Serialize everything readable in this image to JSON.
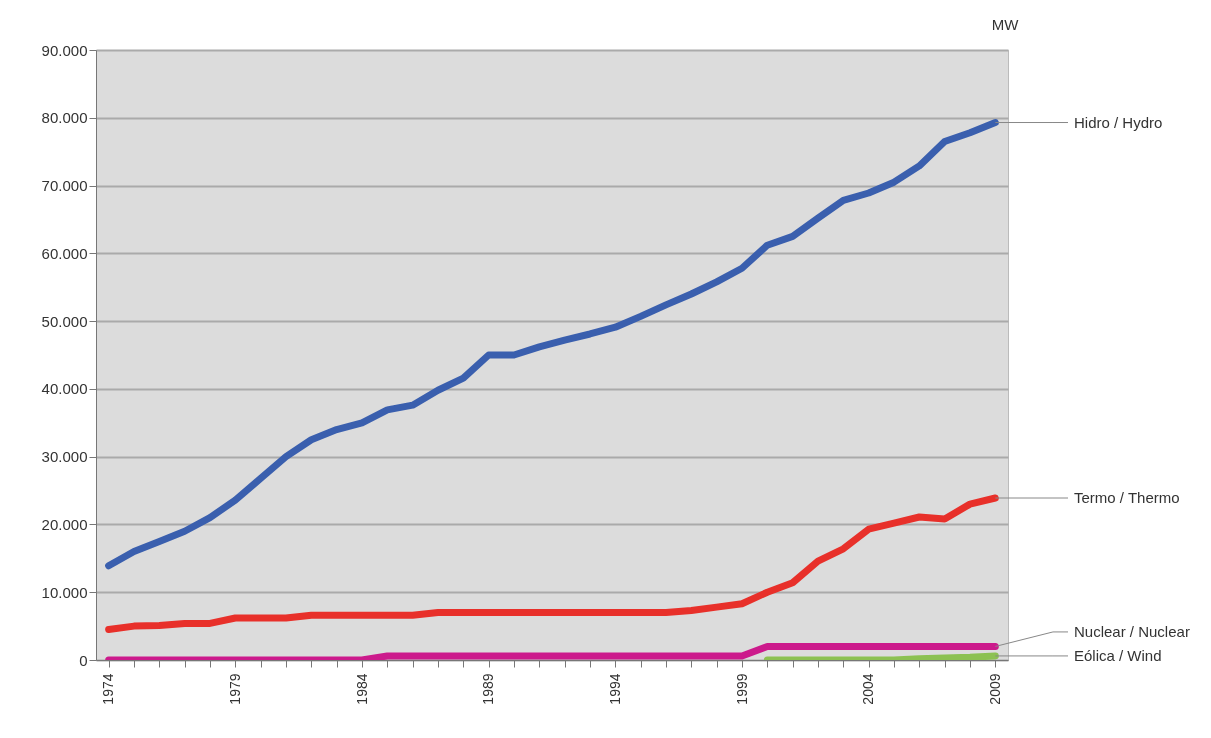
{
  "chart_data": {
    "type": "line",
    "ylabel": "MW",
    "x": [
      1974,
      1975,
      1976,
      1977,
      1978,
      1979,
      1980,
      1981,
      1982,
      1983,
      1984,
      1985,
      1986,
      1987,
      1988,
      1989,
      1990,
      1991,
      1992,
      1993,
      1994,
      1995,
      1996,
      1997,
      1998,
      1999,
      2000,
      2001,
      2002,
      2003,
      2004,
      2005,
      2006,
      2007,
      2008,
      2009
    ],
    "series": [
      {
        "name": "Hidro / Hydro",
        "color": "#3a5fae",
        "values": [
          13900,
          16000,
          17500,
          19000,
          21000,
          23600,
          26800,
          30000,
          32500,
          34000,
          35000,
          36900,
          37600,
          39800,
          41600,
          45000,
          45000,
          46200,
          47200,
          48100,
          49100,
          50700,
          52400,
          54000,
          55800,
          57800,
          61200,
          62500,
          65200,
          67800,
          68900,
          70500,
          72900,
          76500,
          77800,
          79300
        ]
      },
      {
        "name": "Termo / Thermo",
        "color": "#e8302a",
        "values": [
          4500,
          5000,
          5100,
          5400,
          5400,
          6200,
          6200,
          6200,
          6600,
          6600,
          6600,
          6600,
          6600,
          7000,
          7000,
          7000,
          7000,
          7000,
          7000,
          7000,
          7000,
          7000,
          7000,
          7300,
          7800,
          8300,
          10000,
          11400,
          14600,
          16400,
          19300,
          20200,
          21100,
          20800,
          23000,
          23900
        ]
      },
      {
        "name": "Nuclear / Nuclear",
        "color": "#cc1a8c",
        "values": [
          0,
          0,
          0,
          0,
          0,
          0,
          0,
          0,
          0,
          0,
          0,
          600,
          600,
          600,
          600,
          600,
          600,
          600,
          600,
          600,
          600,
          600,
          600,
          600,
          600,
          600,
          2000,
          2000,
          2000,
          2000,
          2000,
          2000,
          2000,
          2000,
          2000,
          2000
        ]
      },
      {
        "name": "Eólica / Wind",
        "color": "#8cc152",
        "values": [
          null,
          null,
          null,
          null,
          null,
          null,
          null,
          null,
          null,
          null,
          null,
          null,
          null,
          null,
          null,
          null,
          null,
          null,
          null,
          null,
          null,
          null,
          null,
          null,
          null,
          null,
          0,
          0,
          0,
          0,
          0,
          0,
          200,
          300,
          400,
          600
        ]
      }
    ],
    "xlim": [
      1973.5,
      2009.5
    ],
    "xticks": [
      1974,
      {
        "value": 1975,
        "label": null
      },
      {
        "value": 1976,
        "label": null
      },
      {
        "value": 1977,
        "label": null
      },
      {
        "value": 1978,
        "label": null
      },
      1979,
      {
        "value": 1980,
        "label": null
      },
      {
        "value": 1981,
        "label": null
      },
      {
        "value": 1982,
        "label": null
      },
      {
        "value": 1983,
        "label": null
      },
      1984,
      {
        "value": 1985,
        "label": null
      },
      {
        "value": 1986,
        "label": null
      },
      {
        "value": 1987,
        "label": null
      },
      {
        "value": 1988,
        "label": null
      },
      1989,
      {
        "value": 1990,
        "label": null
      },
      {
        "value": 1991,
        "label": null
      },
      {
        "value": 1992,
        "label": null
      },
      {
        "value": 1993,
        "label": null
      },
      1994,
      {
        "value": 1995,
        "label": null
      },
      {
        "value": 1996,
        "label": null
      },
      {
        "value": 1997,
        "label": null
      },
      {
        "value": 1998,
        "label": null
      },
      1999,
      {
        "value": 2000,
        "label": null
      },
      {
        "value": 2001,
        "label": null
      },
      {
        "value": 2002,
        "label": null
      },
      {
        "value": 2003,
        "label": null
      },
      2004,
      {
        "value": 2005,
        "label": null
      },
      {
        "value": 2006,
        "label": null
      },
      {
        "value": 2007,
        "label": null
      },
      {
        "value": 2008,
        "label": null
      },
      2009
    ],
    "ylim": [
      0,
      90000
    ],
    "yticks": [
      0,
      {
        "value": 10000,
        "label": "10.000"
      },
      {
        "value": 20000,
        "label": "20.000"
      },
      {
        "value": 30000,
        "label": "30.000"
      },
      {
        "value": 40000,
        "label": "40.000"
      },
      {
        "value": 50000,
        "label": "50.000"
      },
      {
        "value": 60000,
        "label": "60.000"
      },
      {
        "value": 70000,
        "label": "70.000"
      },
      {
        "value": 80000,
        "label": "80.000"
      },
      {
        "value": 90000,
        "label": "90.000"
      }
    ],
    "grid": "y",
    "line_style": "solid"
  }
}
